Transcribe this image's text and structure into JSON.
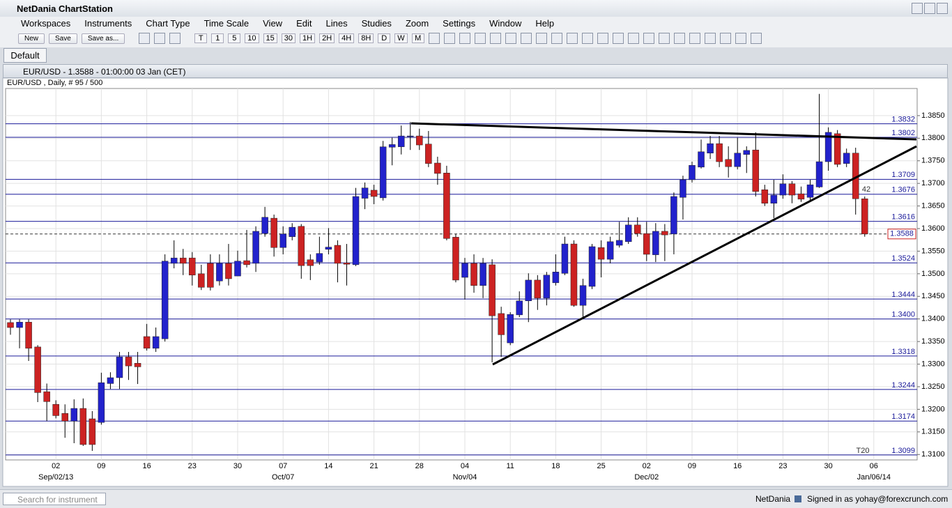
{
  "app": {
    "title": "NetDania ChartStation",
    "menu": [
      "Workspaces",
      "Instruments",
      "Chart Type",
      "Time Scale",
      "View",
      "Edit",
      "Lines",
      "Studies",
      "Zoom",
      "Settings",
      "Window",
      "Help"
    ],
    "toolbar": {
      "buttons": [
        "New",
        "Save",
        "Save as..."
      ],
      "periods": [
        "T",
        "1",
        "5",
        "10",
        "15",
        "30",
        "1H",
        "2H",
        "4H",
        "8H",
        "D",
        "W",
        "M"
      ]
    },
    "tab": "Default"
  },
  "chart_window": {
    "title": "EUR/USD - 1.3588 - 01:00:00 03 Jan (CET)",
    "chart_data": {
      "type": "candlestick",
      "subtitle": "EUR/USD , Daily, # 95 / 500",
      "categories": [
        null,
        null,
        null,
        null,
        null,
        "02",
        null,
        null,
        null,
        null,
        "09",
        null,
        null,
        null,
        null,
        "16",
        null,
        null,
        null,
        null,
        "23",
        null,
        null,
        null,
        null,
        "30",
        null,
        null,
        null,
        null,
        "07",
        null,
        null,
        null,
        null,
        "14",
        null,
        null,
        null,
        null,
        "21",
        null,
        null,
        null,
        null,
        "28",
        null,
        null,
        null,
        null,
        "04",
        null,
        null,
        null,
        null,
        "11",
        null,
        null,
        null,
        null,
        "18",
        null,
        null,
        null,
        null,
        "25",
        null,
        null,
        null,
        null,
        "02",
        null,
        null,
        null,
        null,
        "09",
        null,
        null,
        null,
        null,
        "16",
        null,
        null,
        null,
        null,
        "23",
        null,
        null,
        null,
        null,
        "30",
        null,
        null,
        null,
        null,
        "06"
      ],
      "month_labels": [
        null,
        null,
        null,
        null,
        null,
        "Sep/02/13",
        null,
        null,
        null,
        null,
        null,
        null,
        null,
        null,
        null,
        null,
        null,
        null,
        null,
        null,
        null,
        null,
        null,
        null,
        null,
        null,
        null,
        null,
        null,
        null,
        "Oct/07",
        null,
        null,
        null,
        null,
        null,
        null,
        null,
        null,
        null,
        null,
        null,
        null,
        null,
        null,
        null,
        null,
        null,
        null,
        null,
        "Nov/04",
        null,
        null,
        null,
        null,
        null,
        null,
        null,
        null,
        null,
        null,
        null,
        null,
        null,
        null,
        null,
        null,
        null,
        null,
        null,
        "Dec/02",
        null,
        null,
        null,
        null,
        null,
        null,
        null,
        null,
        null,
        null,
        null,
        null,
        null,
        null,
        null,
        null,
        null,
        null,
        null,
        null,
        null,
        null,
        null,
        null,
        "Jan/06/14"
      ],
      "open": [
        1.3392,
        1.3381,
        1.3393,
        1.3338,
        1.3239,
        1.3211,
        1.3191,
        1.3174,
        1.3202,
        1.3179,
        1.3171,
        1.3257,
        1.327,
        1.3316,
        1.3302,
        1.3361,
        1.3335,
        1.3356,
        1.3523,
        1.3535,
        1.3535,
        1.35,
        1.3523,
        1.3484,
        1.3523,
        1.3495,
        1.3529,
        1.3523,
        1.3589,
        1.3623,
        1.3558,
        1.3582,
        1.3605,
        1.3531,
        1.3526,
        1.3554,
        1.3563,
        1.3524,
        1.352,
        1.3667,
        1.3685,
        1.3668,
        1.378,
        1.3781,
        1.3804,
        1.3805,
        1.3787,
        1.3745,
        1.3723,
        1.3581,
        1.3492,
        1.3523,
        1.3474,
        1.352,
        1.3412,
        1.3347,
        1.3409,
        1.344,
        1.3486,
        1.3446,
        1.348,
        1.3501,
        1.3566,
        1.343,
        1.3472,
        1.3558,
        1.3532,
        1.3563,
        1.3571,
        1.3608,
        1.3589,
        1.3542,
        1.3594,
        1.3588,
        1.3669,
        1.3708,
        1.3736,
        1.3767,
        1.3788,
        1.3753,
        1.3737,
        1.3764,
        1.3774,
        1.3686,
        1.3656,
        1.3674,
        1.3699,
        1.3677,
        1.3669,
        1.3692,
        1.3748,
        1.381,
        1.3744,
        1.3767,
        1.3666,
        null
      ],
      "high": [
        1.3399,
        1.3399,
        1.3399,
        1.3342,
        1.3257,
        1.322,
        1.3211,
        1.3222,
        1.3224,
        1.3196,
        1.3281,
        1.3282,
        1.3327,
        1.3327,
        1.3327,
        1.3389,
        1.3381,
        1.3543,
        1.3574,
        1.3555,
        1.3548,
        1.352,
        1.3543,
        1.3543,
        1.3566,
        1.3551,
        1.3597,
        1.3605,
        1.3648,
        1.3631,
        1.3605,
        1.3612,
        1.361,
        1.3543,
        1.3582,
        1.3601,
        1.3574,
        1.3566,
        1.369,
        1.3702,
        1.3697,
        1.3794,
        1.3801,
        1.3828,
        1.3836,
        1.3821,
        1.3816,
        1.3759,
        1.3739,
        1.3588,
        1.3535,
        1.3543,
        1.3535,
        1.3532,
        1.3427,
        1.3415,
        1.3461,
        1.3501,
        1.3497,
        1.3504,
        1.3543,
        1.3582,
        1.3574,
        1.3489,
        1.3566,
        1.3574,
        1.3582,
        1.3615,
        1.3625,
        1.3625,
        1.3615,
        1.3612,
        1.361,
        1.368,
        1.3717,
        1.3748,
        1.3797,
        1.3805,
        1.3805,
        1.3782,
        1.3801,
        1.3782,
        1.3813,
        1.3697,
        1.3708,
        1.372,
        1.3705,
        1.3693,
        1.3708,
        1.3898,
        1.3824,
        1.3818,
        1.3777,
        1.3779,
        1.3671,
        null
      ],
      "low": [
        1.3365,
        1.3335,
        1.3307,
        1.3216,
        1.3174,
        1.318,
        1.3137,
        1.3125,
        1.3119,
        1.3108,
        1.3166,
        1.3245,
        1.3245,
        1.3265,
        1.3256,
        1.333,
        1.3327,
        1.335,
        1.3512,
        1.3497,
        1.3474,
        1.3464,
        1.3463,
        1.3474,
        1.3474,
        1.3495,
        1.3514,
        1.3504,
        1.3582,
        1.3538,
        1.3543,
        1.3574,
        1.3489,
        1.3486,
        1.352,
        1.3543,
        1.3481,
        1.3474,
        1.3517,
        1.3643,
        1.3654,
        1.3662,
        1.374,
        1.3764,
        1.3774,
        1.3774,
        1.3736,
        1.3697,
        1.3574,
        1.3481,
        1.3443,
        1.3458,
        1.3446,
        1.3304,
        1.3316,
        1.3342,
        1.3404,
        1.3393,
        1.342,
        1.343,
        1.3474,
        1.3497,
        1.3427,
        1.3403,
        1.3466,
        1.3492,
        1.3523,
        1.3558,
        1.3566,
        1.3582,
        1.3528,
        1.3526,
        1.3528,
        1.3543,
        1.362,
        1.3702,
        1.3733,
        1.3754,
        1.3736,
        1.3713,
        1.3731,
        1.3723,
        1.3671,
        1.365,
        1.3623,
        1.3666,
        1.3656,
        1.3659,
        1.3662,
        1.369,
        1.3728,
        1.3736,
        1.3736,
        1.3631,
        1.3582,
        null
      ],
      "close": [
        1.3381,
        1.3393,
        1.3335,
        1.3237,
        1.3217,
        1.3186,
        1.3174,
        1.3202,
        1.3122,
        1.3122,
        1.3259,
        1.327,
        1.3316,
        1.3296,
        1.3294,
        1.3335,
        1.3361,
        1.3528,
        1.3535,
        1.3523,
        1.3497,
        1.347,
        1.347,
        1.3523,
        1.3489,
        1.3528,
        1.352,
        1.3594,
        1.3625,
        1.3558,
        1.3588,
        1.3603,
        1.3518,
        1.3518,
        1.3545,
        1.3559,
        1.3523,
        1.3521,
        1.3671,
        1.369,
        1.3671,
        1.3781,
        1.3786,
        1.3805,
        1.3805,
        1.3785,
        1.3744,
        1.3722,
        1.3578,
        1.3486,
        1.3523,
        1.3474,
        1.3523,
        1.3407,
        1.3365,
        1.341,
        1.344,
        1.3486,
        1.3446,
        1.3497,
        1.3504,
        1.3566,
        1.343,
        1.3474,
        1.356,
        1.3532,
        1.3571,
        1.3574,
        1.3608,
        1.3589,
        1.3543,
        1.3594,
        1.3586,
        1.3671,
        1.3708,
        1.374,
        1.377,
        1.3788,
        1.3748,
        1.3737,
        1.3767,
        1.3773,
        1.3682,
        1.3656,
        1.3674,
        1.3699,
        1.3674,
        1.3665,
        1.3697,
        1.3748,
        1.3813,
        1.3742,
        1.3767,
        1.3666,
        1.3588,
        null
      ],
      "up_color": "#2222cc",
      "down_color": "#cc2222",
      "ylim": [
        1.3088,
        1.391
      ],
      "yticks": [
        {
          "value": 1.31,
          "label": "1.3100"
        },
        {
          "value": 1.315,
          "label": "1.3150"
        },
        {
          "value": 1.32,
          "label": "1.3200"
        },
        {
          "value": 1.325,
          "label": "1.3250"
        },
        {
          "value": 1.33,
          "label": "1.3300"
        },
        {
          "value": 1.335,
          "label": "1.3350"
        },
        {
          "value": 1.34,
          "label": "1.3400"
        },
        {
          "value": 1.345,
          "label": "1.3450"
        },
        {
          "value": 1.35,
          "label": "1.3500"
        },
        {
          "value": 1.355,
          "label": "1.3550"
        },
        {
          "value": 1.36,
          "label": "1.3600"
        },
        {
          "value": 1.365,
          "label": "1.3650"
        },
        {
          "value": 1.37,
          "label": "1.3700"
        },
        {
          "value": 1.375,
          "label": "1.3750"
        },
        {
          "value": 1.38,
          "label": "1.3800"
        },
        {
          "value": 1.385,
          "label": "1.3850"
        }
      ],
      "grid": true,
      "levels": [
        {
          "value": 1.3832,
          "label": "1.3832"
        },
        {
          "value": 1.3802,
          "label": "1.3802"
        },
        {
          "value": 1.3709,
          "label": "1.3709"
        },
        {
          "value": 1.3676,
          "label": "1.3676"
        },
        {
          "value": 1.3616,
          "label": "1.3616"
        },
        {
          "value": 1.3524,
          "label": "1.3524"
        },
        {
          "value": 1.3444,
          "label": "1.3444"
        },
        {
          "value": 1.34,
          "label": "1.3400"
        },
        {
          "value": 1.3318,
          "label": "1.3318"
        },
        {
          "value": 1.3244,
          "label": "1.3244"
        },
        {
          "value": 1.3174,
          "label": "1.3174"
        },
        {
          "value": 1.3099,
          "label": "1.3099"
        }
      ],
      "level_color": "#1a1a9a",
      "last_price": {
        "value": 1.3588,
        "label": "1.3588"
      },
      "annotations": [
        "42",
        "T20"
      ]
    }
  },
  "status_bar": {
    "search_placeholder": "Search for instrument",
    "brand": "NetDania",
    "signed_in": "Signed in as yohay@forexcrunch.com"
  }
}
